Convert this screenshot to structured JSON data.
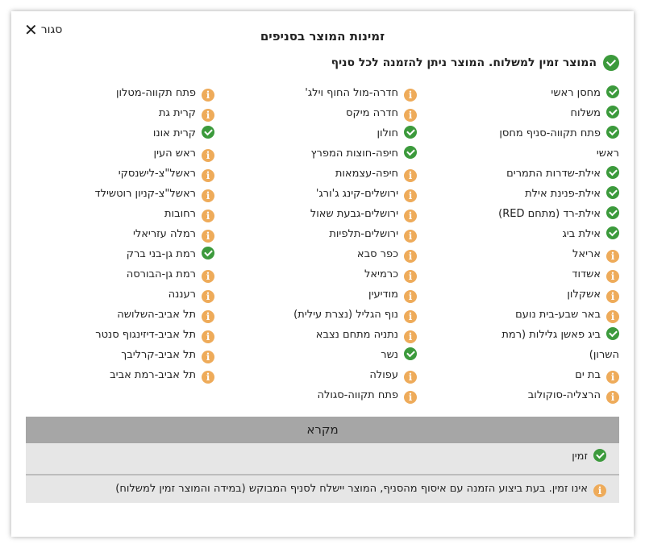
{
  "modal": {
    "close_label": "סגור",
    "title": "זמינות המוצר בסניפים",
    "summary": "המוצר זמין למשלוח. המוצר ניתן להזמנה לכל סניף"
  },
  "columns": [
    [
      {
        "name": "מחסן ראשי",
        "status": "available"
      },
      {
        "name": "משלוח",
        "status": "available"
      },
      {
        "name": "פתח תקווה-סניף מחסן ראשי",
        "status": "available"
      },
      {
        "name": "אילת-שדרות התמרים",
        "status": "available"
      },
      {
        "name": "אילת-פנינת אילת",
        "status": "available"
      },
      {
        "name": "אילת-רד (מתחם RED)",
        "status": "available"
      },
      {
        "name": "אילת ביג",
        "status": "available"
      },
      {
        "name": "אריאל",
        "status": "unavailable"
      },
      {
        "name": "אשדוד",
        "status": "unavailable"
      },
      {
        "name": "אשקלון",
        "status": "unavailable"
      },
      {
        "name": "באר שבע-בית נועם",
        "status": "unavailable"
      },
      {
        "name": "ביג פאשן גלילות (רמת השרון)",
        "status": "available"
      },
      {
        "name": "בת ים",
        "status": "unavailable"
      },
      {
        "name": "הרצליה-סוקולוב",
        "status": "unavailable"
      }
    ],
    [
      {
        "name": "חדרה-מול החוף וילג'",
        "status": "unavailable"
      },
      {
        "name": "חדרה מיקס",
        "status": "unavailable"
      },
      {
        "name": "חולון",
        "status": "available"
      },
      {
        "name": "חיפה-חוצות המפרץ",
        "status": "available"
      },
      {
        "name": "חיפה-עצמאות",
        "status": "unavailable"
      },
      {
        "name": "ירושלים-קינג ג'ורג'",
        "status": "unavailable"
      },
      {
        "name": "ירושלים-גבעת שאול",
        "status": "unavailable"
      },
      {
        "name": "ירושלים-תלפיות",
        "status": "unavailable"
      },
      {
        "name": "כפר סבא",
        "status": "unavailable"
      },
      {
        "name": "כרמיאל",
        "status": "unavailable"
      },
      {
        "name": "מודיעין",
        "status": "unavailable"
      },
      {
        "name": "נוף הגליל (נצרת עילית)",
        "status": "unavailable"
      },
      {
        "name": "נתניה מתחם נצבא",
        "status": "unavailable"
      },
      {
        "name": "נשר",
        "status": "available"
      },
      {
        "name": "עפולה",
        "status": "unavailable"
      },
      {
        "name": "פתח תקווה-סגולה",
        "status": "unavailable"
      }
    ],
    [
      {
        "name": "פתח תקווה-מטלון",
        "status": "unavailable"
      },
      {
        "name": "קרית גת",
        "status": "unavailable"
      },
      {
        "name": "קרית אונו",
        "status": "available"
      },
      {
        "name": "ראש העין",
        "status": "unavailable"
      },
      {
        "name": "ראשל\"צ-לישנסקי",
        "status": "unavailable"
      },
      {
        "name": "ראשל\"צ-קניון רוטשילד",
        "status": "unavailable"
      },
      {
        "name": "רחובות",
        "status": "unavailable"
      },
      {
        "name": "רמלה עזריאלי",
        "status": "unavailable"
      },
      {
        "name": "רמת גן-בני ברק",
        "status": "available"
      },
      {
        "name": "רמת גן-הבורסה",
        "status": "unavailable"
      },
      {
        "name": "רעננה",
        "status": "unavailable"
      },
      {
        "name": "תל אביב-השלושה",
        "status": "unavailable"
      },
      {
        "name": "תל אביב-דיזינגוף סנטר",
        "status": "unavailable"
      },
      {
        "name": "תל אביב-קרליבך",
        "status": "unavailable"
      },
      {
        "name": "תל אביב-רמת אביב",
        "status": "unavailable"
      }
    ]
  ],
  "legend": {
    "title": "מקרא",
    "available": "זמין",
    "unavailable": "אינו זמין. בעת ביצוע הזמנה עם איסוף מהסניף, המוצר יישלח לסניף המבוקש (במידה והמוצר זמין למשלוח)"
  },
  "colors": {
    "available": "#3c9a3c",
    "unavailable": "#eeab5a",
    "legend_header": "#a6a6a6",
    "legend_row": "#e6e6e6"
  },
  "icons": {
    "available": "check-circle-icon",
    "unavailable": "info-circle-icon",
    "close": "close-x-icon"
  }
}
